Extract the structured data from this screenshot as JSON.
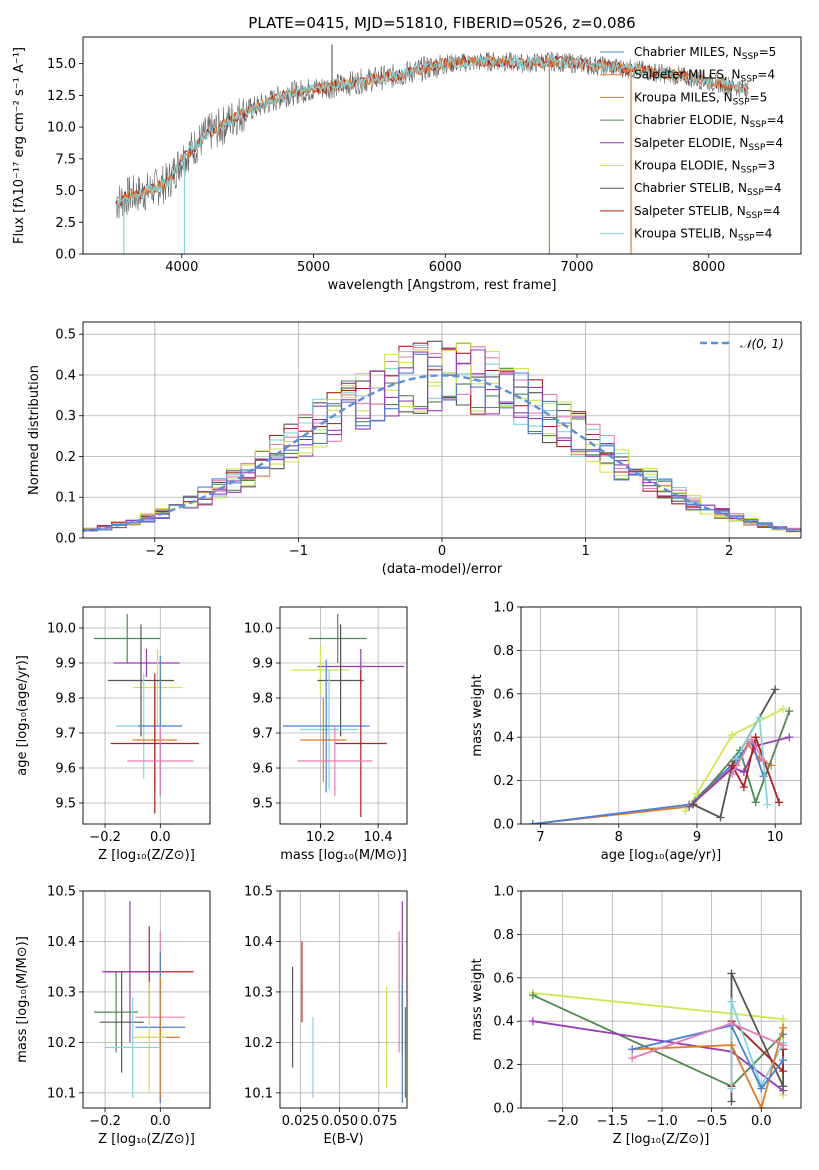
{
  "figure_title": "PLATE=0415, MJD=51810, FIBERID=0526, z=0.086",
  "colors": {
    "chabrier_miles": "#4a7fd8",
    "salpeter_miles": "#e07b28",
    "kroupa_miles": "#b58b2a",
    "chabrier_elodie": "#4f8a4f",
    "salpeter_elodie": "#9a3ab8",
    "kroupa_elodie": "#d2e64a",
    "chabrier_stelib": "#555555",
    "salpeter_stelib": "#b21e1e",
    "kroupa_stelib": "#7fd6de",
    "pink": "#e67fb4",
    "gauss": "#5b8fd6"
  },
  "chart_data": [
    {
      "id": "spectrum",
      "type": "line",
      "title": "PLATE=0415, MJD=51810, FIBERID=0526, z=0.086",
      "xlabel": "wavelength [Angstrom, rest frame]",
      "ylabel": "Flux [fλ10⁻¹⁷ erg cm⁻² s⁻¹ A⁻¹]",
      "xlim": [
        3250,
        8700
      ],
      "ylim": [
        0,
        17.1
      ],
      "xticks": [
        4000,
        5000,
        6000,
        7000,
        8000
      ],
      "yticks": [
        0.0,
        2.5,
        5.0,
        7.5,
        10.0,
        12.5,
        15.0
      ],
      "legend": "top-right",
      "legend_entries": [
        "Chabrier MILES, N_SSP=5",
        "Salpeter MILES, N_SSP=4",
        "Kroupa MILES, N_SSP=5",
        "Chabrier ELODIE, N_SSP=4",
        "Salpeter ELODIE, N_SSP=4",
        "Kroupa ELODIE, N_SSP=3",
        "Chabrier STELIB, N_SSP=4",
        "Salpeter STELIB, N_SSP=4",
        "Kroupa STELIB, N_SSP=4"
      ],
      "continuum": {
        "x": [
          3500,
          3600,
          3700,
          3800,
          3900,
          4000,
          4100,
          4200,
          4300,
          4400,
          4500,
          4600,
          4800,
          5000,
          5200,
          5400,
          5600,
          5800,
          6000,
          6200,
          6400,
          6600,
          6800,
          7000,
          7200,
          7400,
          7600,
          7800,
          8000,
          8200,
          8300
        ],
        "y": [
          4.0,
          4.6,
          4.8,
          5.2,
          5.7,
          7.5,
          8.5,
          9.5,
          10.0,
          10.8,
          11.3,
          11.7,
          12.6,
          13.0,
          13.3,
          13.7,
          14.0,
          14.5,
          15.0,
          15.1,
          15.2,
          15.0,
          15.2,
          15.0,
          14.8,
          14.6,
          14.3,
          14.0,
          13.6,
          13.2,
          13.0
        ]
      },
      "spikes": [
        {
          "x": 5140,
          "y": 16.5
        },
        {
          "x": 6790,
          "y": 0.0
        },
        {
          "x": 7410,
          "y": 0.0
        },
        {
          "x": 4020,
          "y": 0.0
        },
        {
          "x": 3560,
          "y": 0.0
        }
      ]
    },
    {
      "id": "residuals",
      "type": "histogram",
      "xlabel": "(data-model)/error",
      "ylabel": "Normed distribution",
      "xlim": [
        -2.5,
        2.5
      ],
      "ylim": [
        0,
        0.53
      ],
      "xticks": [
        -2,
        -1,
        0,
        1,
        2
      ],
      "yticks": [
        0.0,
        0.1,
        0.2,
        0.3,
        0.4,
        0.5
      ],
      "legend": "top-right",
      "legend_entries": [
        "𝒩(0, 1)"
      ],
      "bin_width": 0.1
    },
    {
      "id": "age_vs_Z",
      "type": "errorbar",
      "xlabel": "Z [log₁₀(Z/Z⊙)]",
      "ylabel": "age  [log₁₀(age/yr)]",
      "xlim": [
        -0.28,
        0.18
      ],
      "ylim": [
        9.44,
        10.06
      ],
      "xticks": [
        -0.2,
        0.0
      ],
      "yticks": [
        9.5,
        9.6,
        9.7,
        9.8,
        9.9,
        10.0
      ],
      "points": [
        {
          "c": "chabrier_elodie",
          "x": -0.12,
          "xe": 0.12,
          "y": 9.97,
          "ye": 0.07
        },
        {
          "c": "salpeter_elodie",
          "x": -0.05,
          "xe": 0.12,
          "y": 9.9,
          "ye": 0.04
        },
        {
          "c": "kroupa_elodie",
          "x": -0.01,
          "xe": 0.09,
          "y": 9.83,
          "ye": 0.11
        },
        {
          "c": "chabrier_stelib",
          "x": -0.07,
          "xe": 0.12,
          "y": 9.85,
          "ye": 0.16
        },
        {
          "c": "kroupa_stelib",
          "x": -0.06,
          "xe": 0.1,
          "y": 9.72,
          "ye": 0.15
        },
        {
          "c": "chabrier_miles",
          "x": 0.0,
          "xe": 0.08,
          "y": 9.72,
          "ye": 0.2
        },
        {
          "c": "salpeter_miles",
          "x": -0.02,
          "xe": 0.08,
          "y": 9.68,
          "ye": 0.15
        },
        {
          "c": "salpeter_stelib",
          "x": -0.02,
          "xe": 0.16,
          "y": 9.67,
          "ye": 0.2
        },
        {
          "c": "pink",
          "x": 0.0,
          "xe": 0.12,
          "y": 9.62,
          "ye": 0.1
        }
      ]
    },
    {
      "id": "age_vs_mass",
      "type": "errorbar",
      "xlabel": "mass [log₁₀(M/M⊙)]",
      "ylabel": "",
      "xlim": [
        10.06,
        10.5
      ],
      "ylim": [
        9.44,
        10.06
      ],
      "xticks": [
        10.2,
        10.4
      ],
      "yticks": [
        9.5,
        9.6,
        9.7,
        9.8,
        9.9,
        10.0
      ],
      "points": [
        {
          "c": "chabrier_elodie",
          "x": 10.26,
          "xe": 0.1,
          "y": 9.97,
          "ye": 0.07
        },
        {
          "c": "salpeter_elodie",
          "x": 10.34,
          "xe": 0.15,
          "y": 9.89,
          "ye": 0.05
        },
        {
          "c": "kroupa_elodie",
          "x": 10.2,
          "xe": 0.1,
          "y": 9.88,
          "ye": 0.07
        },
        {
          "c": "chabrier_stelib",
          "x": 10.27,
          "xe": 0.08,
          "y": 9.85,
          "ye": 0.16
        },
        {
          "c": "kroupa_stelib",
          "x": 10.23,
          "xe": 0.1,
          "y": 9.71,
          "ye": 0.17
        },
        {
          "c": "chabrier_miles",
          "x": 10.22,
          "xe": 0.15,
          "y": 9.72,
          "ye": 0.19
        },
        {
          "c": "salpeter_miles",
          "x": 10.21,
          "xe": 0.08,
          "y": 9.68,
          "ye": 0.12
        },
        {
          "c": "salpeter_stelib",
          "x": 10.34,
          "xe": 0.09,
          "y": 9.67,
          "ye": 0.21
        },
        {
          "c": "pink",
          "x": 10.25,
          "xe": 0.13,
          "y": 9.62,
          "ye": 0.1
        }
      ]
    },
    {
      "id": "weight_vs_age",
      "type": "line",
      "xlabel": "age  [log₁₀(age/yr)]",
      "ylabel": "mass weight",
      "xlim": [
        6.75,
        10.33
      ],
      "ylim": [
        0,
        1.0
      ],
      "xticks": [
        7,
        8,
        9,
        10
      ],
      "yticks": [
        0.0,
        0.2,
        0.4,
        0.6,
        0.8,
        1.0
      ],
      "series": [
        {
          "c": "salpeter_miles",
          "x": [
            6.9,
            8.9,
            9.5,
            9.65,
            9.8,
            9.95
          ],
          "y": [
            0.0,
            0.08,
            0.27,
            0.37,
            0.3,
            0.27
          ]
        },
        {
          "c": "chabrier_miles",
          "x": [
            6.9,
            8.9,
            9.5,
            9.7,
            9.85
          ],
          "y": [
            0.0,
            0.09,
            0.29,
            0.38,
            0.22
          ]
        },
        {
          "c": "kroupa_elodie",
          "x": [
            8.85,
            9.0,
            9.45,
            10.1
          ],
          "y": [
            0.06,
            0.14,
            0.41,
            0.53
          ]
        },
        {
          "c": "chabrier_elodie",
          "x": [
            8.95,
            9.55,
            9.75,
            10.18
          ],
          "y": [
            0.09,
            0.34,
            0.1,
            0.52
          ]
        },
        {
          "c": "salpeter_elodie",
          "x": [
            8.9,
            9.45,
            9.6,
            9.75,
            10.18
          ],
          "y": [
            0.08,
            0.26,
            0.24,
            0.36,
            0.4
          ]
        },
        {
          "c": "chabrier_stelib",
          "x": [
            8.95,
            9.3,
            9.45,
            10.0
          ],
          "y": [
            0.09,
            0.03,
            0.27,
            0.62
          ]
        },
        {
          "c": "salpeter_stelib",
          "x": [
            9.45,
            9.6,
            9.75,
            10.05
          ],
          "y": [
            0.27,
            0.17,
            0.4,
            0.1
          ]
        },
        {
          "c": "kroupa_stelib",
          "x": [
            9.5,
            9.8,
            9.9
          ],
          "y": [
            0.3,
            0.49,
            0.09
          ]
        },
        {
          "c": "pink",
          "x": [
            9.45,
            9.7,
            9.85
          ],
          "y": [
            0.23,
            0.39,
            0.29
          ]
        }
      ]
    },
    {
      "id": "mass_vs_Z",
      "type": "errorbar",
      "xlabel": "Z [log₁₀(Z/Z⊙)]",
      "ylabel": "mass [log₁₀(M/M⊙)]",
      "xlim": [
        -0.28,
        0.18
      ],
      "ylim": [
        10.07,
        10.5
      ],
      "xticks": [
        -0.2,
        0.0
      ],
      "yticks": [
        10.1,
        10.2,
        10.3,
        10.4,
        10.5
      ],
      "points": [
        {
          "c": "salpeter_stelib",
          "x": -0.04,
          "xe": 0.16,
          "y": 10.34,
          "ye": 0.09
        },
        {
          "c": "salpeter_elodie",
          "x": -0.11,
          "xe": 0.1,
          "y": 10.34,
          "ye": 0.14
        },
        {
          "c": "chabrier_elodie",
          "x": -0.16,
          "xe": 0.08,
          "y": 10.26,
          "ye": 0.08
        },
        {
          "c": "chabrier_stelib",
          "x": -0.14,
          "xe": 0.08,
          "y": 10.24,
          "ye": 0.1
        },
        {
          "c": "pink",
          "x": 0.0,
          "xe": 0.09,
          "y": 10.25,
          "ye": 0.17
        },
        {
          "c": "chabrier_miles",
          "x": 0.0,
          "xe": 0.09,
          "y": 10.23,
          "ye": 0.15
        },
        {
          "c": "salpeter_miles",
          "x": 0.0,
          "xe": 0.07,
          "y": 10.21,
          "ye": 0.12
        },
        {
          "c": "kroupa_elodie",
          "x": -0.04,
          "xe": 0.06,
          "y": 10.21,
          "ye": 0.11
        },
        {
          "c": "kroupa_stelib",
          "x": -0.1,
          "xe": 0.1,
          "y": 10.19,
          "ye": 0.1
        }
      ]
    },
    {
      "id": "mass_vs_ebv",
      "type": "errorbar",
      "xlabel": "E(B-V)",
      "ylabel": "",
      "xlim": [
        0.012,
        0.093
      ],
      "ylim": [
        10.07,
        10.5
      ],
      "xticks": [
        0.025,
        0.05,
        0.075
      ],
      "yticks": [
        10.1,
        10.2,
        10.3,
        10.4,
        10.5
      ],
      "points": [
        {
          "c": "chabrier_stelib",
          "x": 0.02,
          "xe": 0.0,
          "y": 10.25,
          "ye": 0.1
        },
        {
          "c": "salpeter_stelib",
          "x": 0.026,
          "xe": 0.0,
          "y": 10.32,
          "ye": 0.08
        },
        {
          "c": "kroupa_stelib",
          "x": 0.033,
          "xe": 0.0,
          "y": 10.17,
          "ye": 0.08
        },
        {
          "c": "kroupa_elodie",
          "x": 0.08,
          "xe": 0.0,
          "y": 10.21,
          "ye": 0.1
        },
        {
          "c": "pink",
          "x": 0.088,
          "xe": 0.0,
          "y": 10.3,
          "ye": 0.12
        },
        {
          "c": "salpeter_elodie",
          "x": 0.09,
          "xe": 0.0,
          "y": 10.33,
          "ye": 0.15
        },
        {
          "c": "chabrier_miles",
          "x": 0.09,
          "xe": 0.0,
          "y": 10.2,
          "ye": 0.12
        },
        {
          "c": "chabrier_elodie",
          "x": 0.092,
          "xe": 0.0,
          "y": 10.18,
          "ye": 0.09
        }
      ]
    },
    {
      "id": "weight_vs_Z",
      "type": "line",
      "xlabel": "Z [log₁₀(Z/Z⊙)]",
      "ylabel": "mass weight",
      "xlim": [
        -2.42,
        0.4
      ],
      "ylim": [
        0,
        1.0
      ],
      "xticks": [
        -2.0,
        -1.5,
        -1.0,
        -0.5,
        0.0
      ],
      "yticks": [
        0.0,
        0.2,
        0.4,
        0.6,
        0.8,
        1.0
      ],
      "series": [
        {
          "c": "kroupa_elodie",
          "x": [
            -2.3,
            0.22,
            0.22
          ],
          "y": [
            0.53,
            0.41,
            0.06
          ]
        },
        {
          "c": "chabrier_elodie",
          "x": [
            -2.3,
            -0.3,
            0.22
          ],
          "y": [
            0.52,
            0.1,
            0.34
          ]
        },
        {
          "c": "salpeter_elodie",
          "x": [
            -2.3,
            -0.3,
            0.22
          ],
          "y": [
            0.4,
            0.26,
            0.08
          ]
        },
        {
          "c": "chabrier_stelib",
          "x": [
            -0.3,
            -0.3,
            0.22,
            0.22
          ],
          "y": [
            0.03,
            0.62,
            0.1,
            0.27
          ]
        },
        {
          "c": "salpeter_stelib",
          "x": [
            -0.3,
            -0.3,
            0.22,
            0.22
          ],
          "y": [
            0.1,
            0.4,
            0.17,
            0.27
          ]
        },
        {
          "c": "kroupa_stelib",
          "x": [
            -0.3,
            -0.3,
            0.0,
            0.22
          ],
          "y": [
            0.09,
            0.49,
            0.1,
            0.3
          ]
        },
        {
          "c": "salpeter_miles",
          "x": [
            -1.3,
            -0.3,
            0.0,
            0.22
          ],
          "y": [
            0.27,
            0.29,
            0.0,
            0.37
          ]
        },
        {
          "c": "chabrier_miles",
          "x": [
            -1.3,
            -0.3,
            0.0,
            0.22
          ],
          "y": [
            0.27,
            0.38,
            0.09,
            0.22
          ]
        },
        {
          "c": "pink",
          "x": [
            -1.3,
            -0.3,
            0.22
          ],
          "y": [
            0.23,
            0.39,
            0.29
          ]
        }
      ]
    }
  ]
}
